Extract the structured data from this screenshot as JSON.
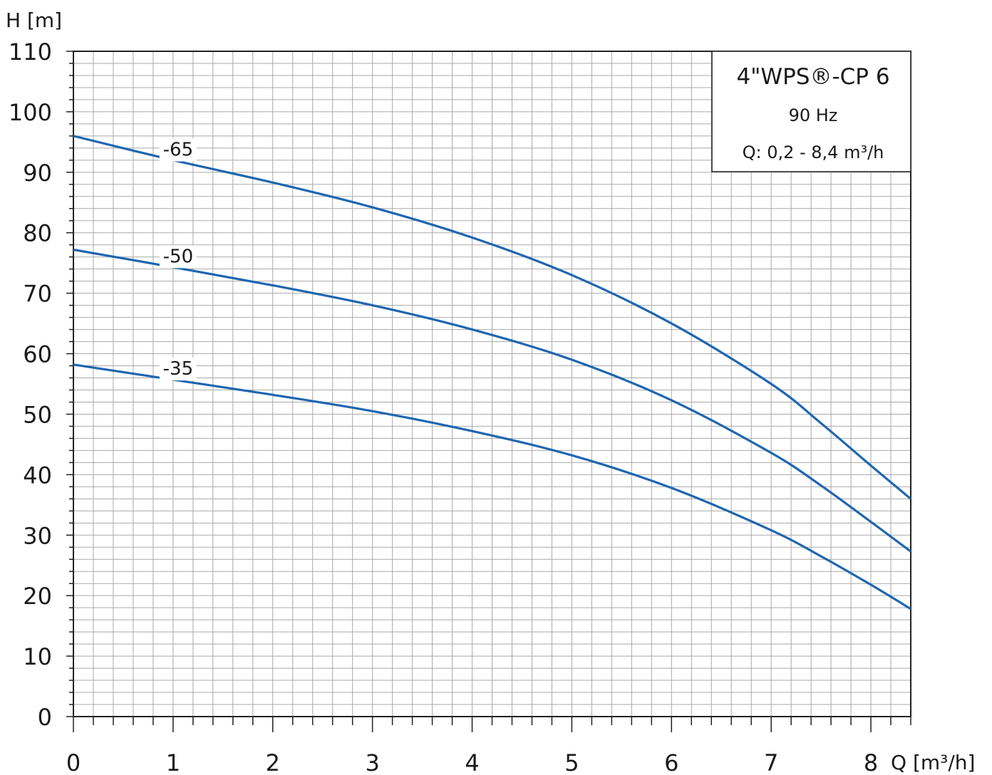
{
  "chart_data": {
    "type": "line",
    "y_axis_label": "H [m]",
    "x_axis_label": "Q [m³/h]",
    "xlim": [
      0,
      8.4
    ],
    "ylim": [
      0,
      110
    ],
    "x_ticks": [
      "0",
      "1",
      "2",
      "3",
      "4",
      "5",
      "6",
      "7",
      "8"
    ],
    "y_ticks": [
      "0",
      "10",
      "20",
      "30",
      "40",
      "50",
      "60",
      "70",
      "80",
      "90",
      "100",
      "110"
    ],
    "grid": true,
    "legend_box": {
      "title": "4\"WPS®-CP 6",
      "line2": "90 Hz",
      "line3": "Q: 0,2 - 8,4 m³/h",
      "placement": "top-right"
    },
    "series": [
      {
        "name": "-65",
        "x": [
          0,
          1,
          2,
          3,
          4,
          5,
          6,
          7,
          7.5,
          8,
          8.4
        ],
        "y": [
          96,
          92,
          88.3,
          84.2,
          79.2,
          73,
          65,
          55,
          48.5,
          41.5,
          36
        ]
      },
      {
        "name": "-50",
        "x": [
          0,
          1,
          2,
          3,
          4,
          5,
          6,
          7,
          7.5,
          8,
          8.4
        ],
        "y": [
          77.2,
          74.3,
          71.3,
          68,
          64,
          59,
          52.3,
          43.6,
          38.2,
          32.2,
          27.3
        ]
      },
      {
        "name": "-35",
        "x": [
          0,
          1,
          2,
          3,
          4,
          5,
          6,
          7,
          7.5,
          8,
          8.4
        ],
        "y": [
          58.2,
          55.7,
          53.2,
          50.5,
          47.2,
          43.2,
          37.8,
          30.8,
          26.5,
          21.8,
          17.8
        ]
      }
    ],
    "line_color": "#1f66b0",
    "grid_color": "#a9a9a9"
  }
}
